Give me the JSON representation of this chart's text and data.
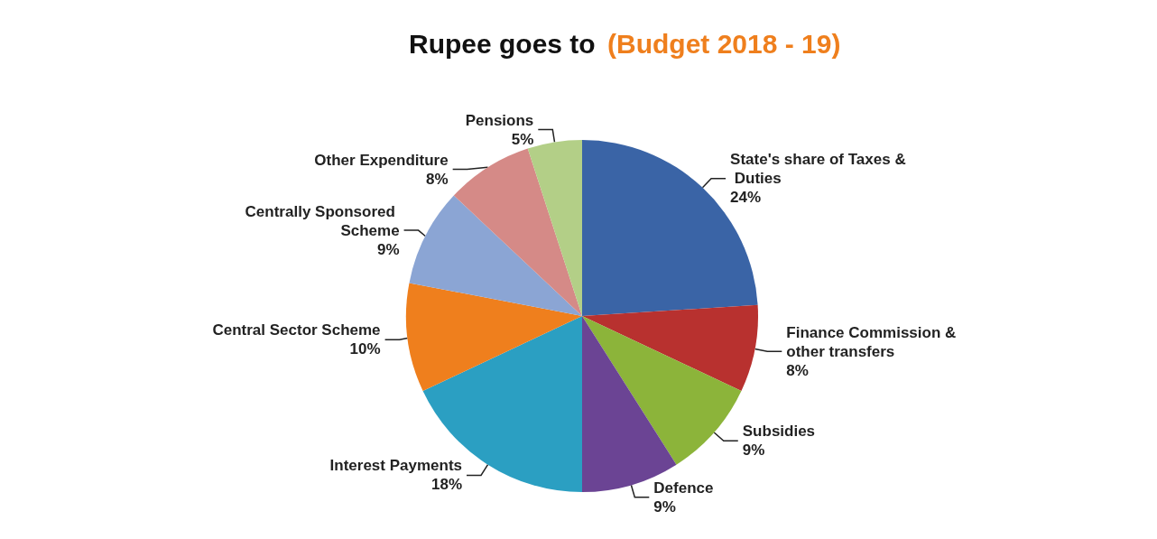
{
  "chart_data": {
    "type": "pie",
    "title": "Rupee goes to",
    "subtitle": "(Budget 2018 - 19)",
    "categories": [
      "State's share of Taxes & Duties",
      "Finance Commission & other transfers",
      "Subsidies",
      "Defence",
      "Interest Payments",
      "Central Sector Scheme",
      "Centrally Sponsored Scheme",
      "Other Expenditure",
      "Pensions"
    ],
    "values": [
      24,
      8,
      9,
      9,
      18,
      10,
      9,
      8,
      5
    ],
    "value_labels": [
      "24%",
      "8%",
      "9%",
      "9%",
      "18%",
      "10%",
      "9%",
      "8%",
      "5%"
    ],
    "colors": [
      "#3a64a6",
      "#b8312f",
      "#8cb43a",
      "#6b4494",
      "#2b9fc2",
      "#ef7f1d",
      "#8ba5d4",
      "#d58a87",
      "#b3cf87"
    ],
    "legend": false
  }
}
